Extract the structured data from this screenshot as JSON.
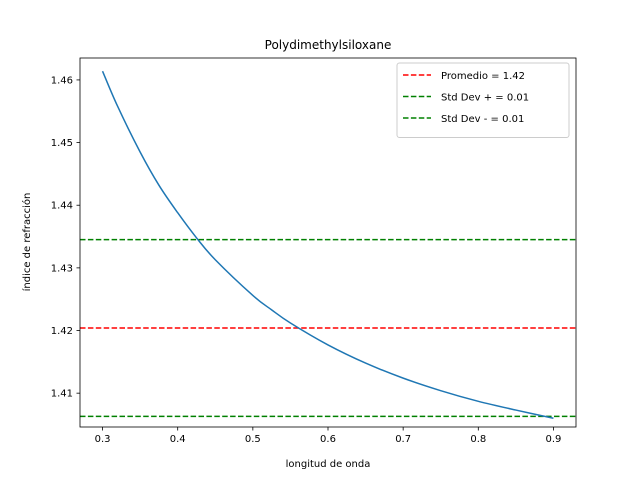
{
  "chart_data": {
    "type": "line",
    "title": "Polydimethylsiloxane",
    "xlabel": "longitud de onda",
    "ylabel": "índice de refracción",
    "xlim": [
      0.27,
      0.93
    ],
    "ylim": [
      1.4046,
      1.4635
    ],
    "xticks": [
      0.3,
      0.4,
      0.5,
      0.6,
      0.7,
      0.8,
      0.9
    ],
    "xtick_labels": [
      "0.3",
      "0.4",
      "0.5",
      "0.6",
      "0.7",
      "0.8",
      "0.9"
    ],
    "yticks": [
      1.41,
      1.42,
      1.43,
      1.44,
      1.45,
      1.46
    ],
    "ytick_labels": [
      "1.41",
      "1.42",
      "1.43",
      "1.44",
      "1.45",
      "1.46"
    ],
    "grid": false,
    "legend_position": "top-right",
    "series": [
      {
        "name": "",
        "color": "#1f77b4",
        "style": "solid",
        "x": [
          0.3,
          0.32,
          0.35,
          0.375,
          0.4,
          0.425,
          0.45,
          0.5,
          0.525,
          0.55,
          0.6,
          0.65,
          0.7,
          0.75,
          0.8,
          0.85,
          0.9
        ],
        "y": [
          1.4614,
          1.4558,
          1.4485,
          1.4432,
          1.4388,
          1.4348,
          1.4313,
          1.4256,
          1.4233,
          1.4212,
          1.4177,
          1.4148,
          1.4124,
          1.4104,
          1.4087,
          1.4073,
          1.406
        ]
      },
      {
        "name": "Promedio = 1.42",
        "color": "#ff0000",
        "style": "dashed",
        "hline": 1.4204
      },
      {
        "name": "Std Dev + = 0.01",
        "color": "#008000",
        "style": "dashed",
        "hline": 1.4345
      },
      {
        "name": "Std Dev - = 0.01",
        "color": "#008000",
        "style": "dashed",
        "hline": 1.4063
      }
    ]
  }
}
